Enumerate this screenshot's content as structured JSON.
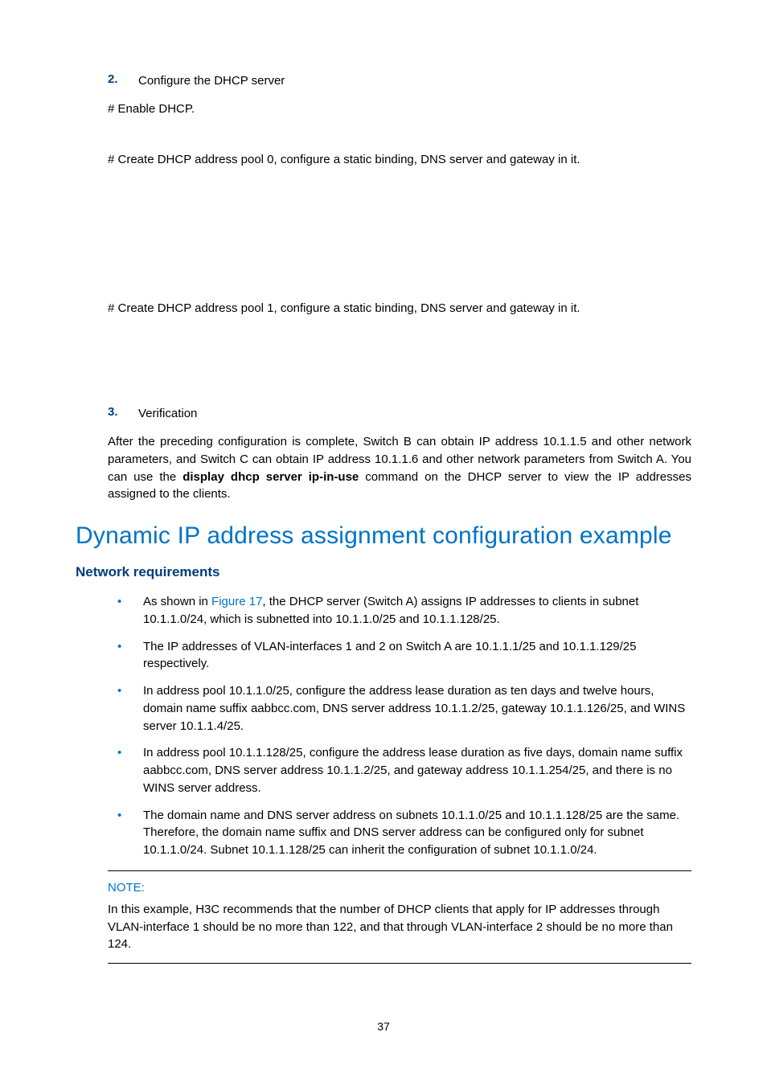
{
  "step2": {
    "num": "2.",
    "text": "Configure the DHCP server"
  },
  "enable_dhcp": "# Enable DHCP.",
  "pool0": "# Create DHCP address pool 0, configure a static binding, DNS server and gateway in it.",
  "pool1": "# Create DHCP address pool 1, configure a static binding, DNS server and gateway in it.",
  "step3": {
    "num": "3.",
    "text": "Verification"
  },
  "verif_para_pre": "After the preceding configuration is complete, Switch B can obtain IP address 10.1.1.5 and other network parameters, and Switch C can obtain IP address 10.1.1.6 and other network parameters from Switch A. You can use the ",
  "verif_bold": "display dhcp server ip-in-use",
  "verif_para_post": " command on the DHCP server to view the IP addresses assigned to the clients.",
  "h1": "Dynamic IP address assignment configuration example",
  "h2": "Network requirements",
  "bullets": {
    "b1_pre": "As shown in ",
    "b1_link": "Figure 17",
    "b1_post": ", the DHCP server (Switch A) assigns IP addresses to clients in subnet 10.1.1.0/24, which is subnetted into 10.1.1.0/25 and 10.1.1.128/25.",
    "b2": "The IP addresses of VLAN-interfaces 1 and 2 on Switch A are 10.1.1.1/25 and 10.1.1.129/25 respectively.",
    "b3": "In address pool 10.1.1.0/25, configure the address lease duration as ten days and twelve hours, domain name suffix aabbcc.com, DNS server address 10.1.1.2/25, gateway 10.1.1.126/25, and WINS server 10.1.1.4/25.",
    "b4": "In address pool 10.1.1.128/25, configure the address lease duration as five days, domain name suffix aabbcc.com, DNS server address 10.1.1.2/25, and gateway address 10.1.1.254/25, and there is no WINS server address.",
    "b5": "The domain name and DNS server address on subnets 10.1.1.0/25 and 10.1.1.128/25 are the same. Therefore, the domain name suffix and DNS server address can be configured only for subnet 10.1.1.0/24. Subnet 10.1.1.128/25 can inherit the configuration of subnet 10.1.1.0/24."
  },
  "note": {
    "label": "NOTE:",
    "text": "In this example, H3C recommends that the number of DHCP clients that apply for IP addresses through VLAN-interface 1 should be no more than 122, and that through VLAN-interface 2 should be no more than 124."
  },
  "page_number": "37"
}
